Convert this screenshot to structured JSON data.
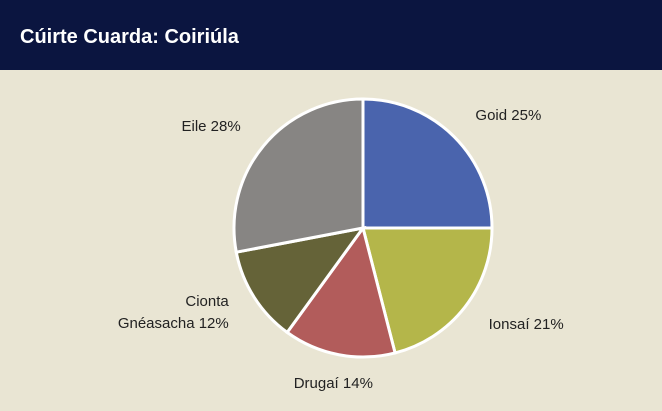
{
  "chart_data": {
    "type": "pie",
    "title": "Cúirte Cuarda: Coiriúla",
    "categories": [
      "Goid",
      "Ionsaí",
      "Drugaí",
      "Cionta Gnéasacha",
      "Eile"
    ],
    "values": [
      25,
      21,
      14,
      12,
      28
    ],
    "value_labels": [
      "25%",
      "21%",
      "14%",
      "12%",
      "28%"
    ],
    "colors": [
      "#4a64ad",
      "#b4b64a",
      "#b25c5b",
      "#656338",
      "#878583"
    ]
  }
}
